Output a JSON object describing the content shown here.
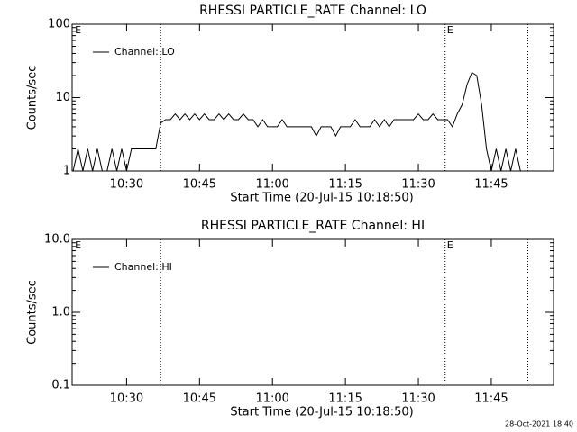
{
  "chart_data": [
    {
      "type": "line",
      "title": "RHESSI PARTICLE_RATE Channel: LO",
      "xlabel": "Start Time (20-Jul-15 10:18:50)",
      "ylabel": "Counts/sec",
      "log_y": true,
      "xlim": [
        618.8,
        717.8
      ],
      "ylim": [
        1,
        100
      ],
      "xticks": [
        {
          "value": 630,
          "label": "10:30"
        },
        {
          "value": 645,
          "label": "10:45"
        },
        {
          "value": 660,
          "label": "11:00"
        },
        {
          "value": 675,
          "label": "11:15"
        },
        {
          "value": 690,
          "label": "11:30"
        },
        {
          "value": 705,
          "label": "11:45"
        }
      ],
      "yticks": [
        1,
        10,
        100
      ],
      "vlines": [
        637,
        695.5,
        712.5
      ],
      "flags": [
        {
          "x": 619,
          "label": "E"
        },
        {
          "x": 695.5,
          "label": "E"
        }
      ],
      "series": [
        {
          "name": "Channel: LO",
          "color": "#000000",
          "x": [
            619,
            620,
            621,
            622,
            623,
            624,
            625,
            626,
            627,
            628,
            629,
            630,
            631,
            632,
            633,
            634,
            635,
            636,
            637,
            638,
            639,
            640,
            641,
            642,
            643,
            644,
            645,
            646,
            647,
            648,
            649,
            650,
            651,
            652,
            653,
            654,
            655,
            656,
            657,
            658,
            659,
            660,
            661,
            662,
            663,
            664,
            665,
            666,
            667,
            668,
            669,
            670,
            671,
            672,
            673,
            674,
            675,
            676,
            677,
            678,
            679,
            680,
            681,
            682,
            683,
            684,
            685,
            686,
            687,
            688,
            689,
            690,
            691,
            692,
            693,
            694,
            695,
            696,
            697,
            698,
            699,
            700,
            701,
            702,
            703,
            704,
            705,
            706,
            707,
            708,
            709,
            710,
            711
          ],
          "values": [
            1,
            2,
            1,
            2,
            1,
            2,
            1,
            1,
            2,
            1,
            2,
            1,
            2,
            2,
            2,
            2,
            2,
            2,
            4.5,
            5,
            5,
            6,
            5,
            6,
            5,
            6,
            5,
            6,
            5,
            5,
            6,
            5,
            6,
            5,
            5,
            6,
            5,
            5,
            4,
            5,
            4,
            4,
            4,
            5,
            4,
            4,
            4,
            4,
            4,
            4,
            3,
            4,
            4,
            4,
            3,
            4,
            4,
            4,
            5,
            4,
            4,
            4,
            5,
            4,
            5,
            4,
            5,
            5,
            5,
            5,
            5,
            6,
            5,
            5,
            6,
            5,
            5,
            5,
            4,
            6,
            8,
            15,
            22,
            20,
            8,
            2,
            1,
            2,
            1,
            2,
            1,
            2,
            1
          ]
        }
      ]
    },
    {
      "type": "line",
      "title": "RHESSI PARTICLE_RATE Channel: HI",
      "xlabel": "Start Time (20-Jul-15 10:18:50)",
      "ylabel": "Counts/sec",
      "log_y": true,
      "xlim": [
        618.8,
        717.8
      ],
      "ylim": [
        0.1,
        10
      ],
      "xticks": [
        {
          "value": 630,
          "label": "10:30"
        },
        {
          "value": 645,
          "label": "10:45"
        },
        {
          "value": 660,
          "label": "11:00"
        },
        {
          "value": 675,
          "label": "11:15"
        },
        {
          "value": 690,
          "label": "11:30"
        },
        {
          "value": 705,
          "label": "11:45"
        }
      ],
      "yticks": [
        0.1,
        {
          "value": 1,
          "label": "1.0"
        },
        {
          "value": 10,
          "label": "10.0"
        }
      ],
      "vlines": [
        637,
        695.5,
        712.5
      ],
      "flags": [
        {
          "x": 619,
          "label": "E"
        },
        {
          "x": 695.5,
          "label": "E"
        }
      ],
      "series": [
        {
          "name": "Channel: HI",
          "color": "#000000",
          "x": [],
          "values": []
        }
      ]
    }
  ],
  "footer": "28-Oct-2021 18:40"
}
